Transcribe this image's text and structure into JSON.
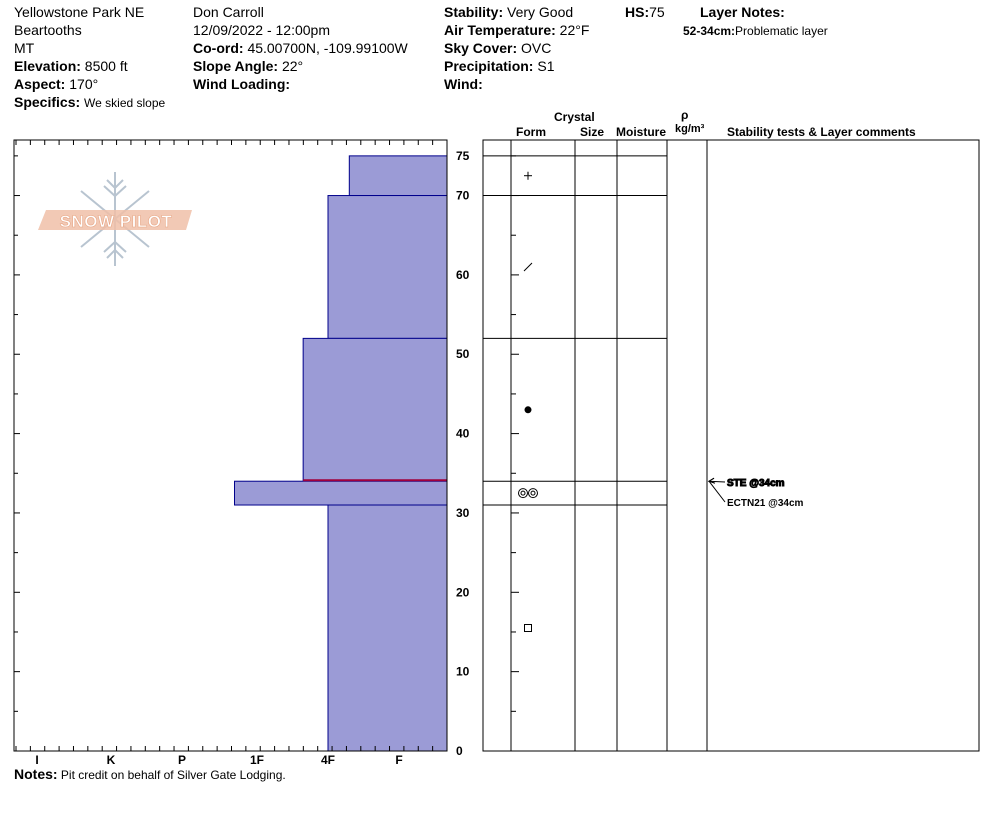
{
  "header": {
    "location": "Yellowstone Park NE",
    "subregion": "Beartooths",
    "state": "MT",
    "elevation_label": "Elevation:",
    "elevation_value": "8500 ft",
    "aspect_label": "Aspect:",
    "aspect_value": "170°",
    "specifics_label": "Specifics:",
    "specifics_value": "We skied slope",
    "observer": "Don Carroll",
    "datetime": "12/09/2022 - 12:00pm",
    "coord_label": "Co-ord:",
    "coord_value": "45.00700N, -109.99100W",
    "slope_label": "Slope Angle:",
    "slope_value": "22°",
    "wind_loading_label": "Wind Loading:",
    "stability_label": "Stability:",
    "stability_value": "Very Good",
    "hs_label": "HS:",
    "hs_value": "75",
    "air_temp_label": "Air Temperature:",
    "air_temp_value": "22°F",
    "sky_label": "Sky Cover:",
    "sky_value": "OVC",
    "precip_label": "Precipitation:",
    "precip_value": "S1",
    "wind_label": "Wind:",
    "layer_notes_label": "Layer Notes:",
    "layer_note_range": "52-34cm:",
    "layer_note_text": "Problematic layer"
  },
  "logo_text": "SNOW PILOT",
  "columns": {
    "crystal": "Crystal",
    "form": "Form",
    "size": "Size",
    "moisture": "Moisture",
    "rho": "ρ",
    "density_unit": "kg/m³",
    "comments": "Stability tests & Layer comments"
  },
  "tests": [
    "STE @34cm",
    "ECTN21 @34cm"
  ],
  "notes": {
    "label": "Notes:",
    "text": "Pit credit on behalf of Silver Gate Lodging."
  },
  "colors": {
    "layer_fill": "#9b9bd6",
    "layer_edge": "#00008b",
    "weak_layer": "#a0003c"
  },
  "chart_data": {
    "type": "snow-profile",
    "y_axis": {
      "unit": "cm",
      "min": 0,
      "max": 75,
      "ticks": [
        0,
        10,
        20,
        30,
        40,
        50,
        60,
        70,
        75
      ]
    },
    "hardness_scale": [
      "I",
      "K",
      "P",
      "1F",
      "4F",
      "F"
    ],
    "layers": [
      {
        "top": 75,
        "bottom": 70,
        "hardness_index": 0.7,
        "grain": "precipitation-particles"
      },
      {
        "top": 70,
        "bottom": 52,
        "hardness_index": 1.0,
        "grain": "decomposing-fragments"
      },
      {
        "top": 52,
        "bottom": 34,
        "hardness_index": 1.35,
        "grain": "rounded-grains"
      },
      {
        "top": 34,
        "bottom": 31,
        "hardness_index": 2.3,
        "grain": "surface-hoar"
      },
      {
        "top": 31,
        "bottom": 0,
        "hardness_index": 1.0,
        "grain": "faceted-crystals"
      }
    ],
    "weak_layer_cm": 34,
    "tests": [
      {
        "label": "STE @34cm",
        "depth": 34
      },
      {
        "label": "ECTN21 @34cm",
        "depth": 34
      }
    ]
  }
}
